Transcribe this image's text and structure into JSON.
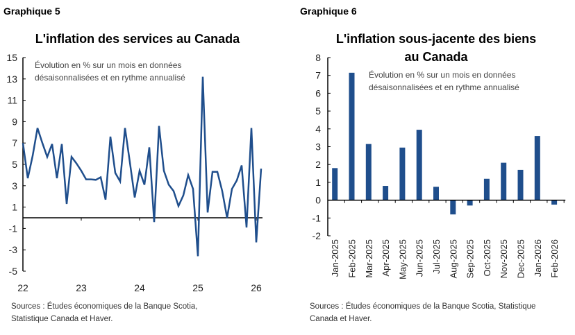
{
  "chart_data": [
    {
      "type": "line",
      "label": "Graphique 5",
      "title": "L'inflation des services au Canada",
      "annotation": [
        "Évolution en % sur un mois en données",
        "désaisonnalisées et en rythme annualisé"
      ],
      "source": [
        "Sources : Études économiques de la Banque Scotia,",
        "Statistique Canada et Haver."
      ],
      "x_start": "2022-01",
      "x_end": "2026-02",
      "x_ticks": [
        "22",
        "23",
        "24",
        "25",
        "26"
      ],
      "y_ticks": [
        15,
        13,
        11,
        9,
        7,
        5,
        3,
        1,
        -1,
        -3,
        -5
      ],
      "ylim": [
        -5,
        15
      ],
      "color": "#1f4e8c",
      "values": [
        7.0,
        3.7,
        5.8,
        8.4,
        7.0,
        5.7,
        6.9,
        3.7,
        6.9,
        1.3,
        5.7,
        5.1,
        4.4,
        3.6,
        3.6,
        3.55,
        3.8,
        1.7,
        7.6,
        4.2,
        3.4,
        8.4,
        5.2,
        1.9,
        4.4,
        3.1,
        6.6,
        -0.4,
        8.6,
        4.4,
        3.1,
        2.5,
        1.1,
        2.1,
        4.0,
        2.7,
        -3.6,
        13.2,
        0.5,
        4.3,
        4.3,
        2.5,
        0.0,
        2.7,
        3.5,
        4.9,
        -0.9,
        8.4,
        -2.3,
        4.6
      ]
    },
    {
      "type": "bar",
      "label": "Graphique 6",
      "title": [
        "L'inflation sous-jacente des biens",
        "au Canada"
      ],
      "annotation": [
        "Évolution en % sur un mois en données",
        "désaisonnalisées et en rythme annualisé"
      ],
      "source": [
        "Sources : Études économiques de la Banque Scotia, Statistique",
        "Canada et Haver."
      ],
      "categories": [
        "Jan-2025",
        "Feb-2025",
        "Mar-2025",
        "Apr-2025",
        "May-2025",
        "Jun-2025",
        "Jul-2025",
        "Aug-2025",
        "Sep-2025",
        "Oct-2025",
        "Nov-2025",
        "Dec-2025",
        "Jan-2026",
        "Feb-2026"
      ],
      "values": [
        1.8,
        7.15,
        3.15,
        0.8,
        2.95,
        3.95,
        0.75,
        -0.8,
        -0.3,
        1.2,
        2.1,
        1.7,
        3.6,
        -0.25
      ],
      "y_ticks": [
        8,
        7,
        6,
        5,
        4,
        3,
        2,
        1,
        0,
        -1,
        -2
      ],
      "ylim": [
        -2,
        8
      ],
      "color": "#1f4e8c"
    }
  ]
}
